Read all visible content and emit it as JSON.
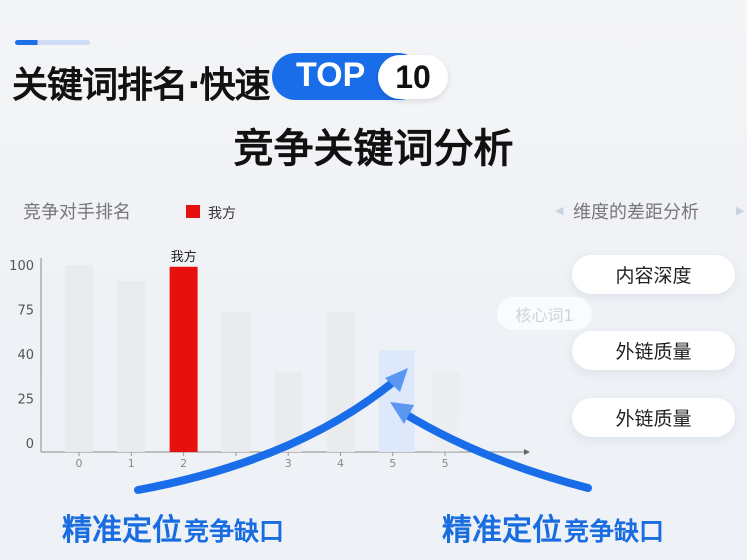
{
  "header": {
    "title": "关键词排名·快速",
    "badge_top": "TOP",
    "badge_number": "10",
    "subtitle": "竞争关键词分析",
    "accent_color": "#1a6de8"
  },
  "left_section": {
    "title": "竞争对手排名"
  },
  "right_section": {
    "title": "维度的差距分析",
    "items": [
      "内容深度",
      "外链质量",
      "外链质量"
    ],
    "faint_item": "核心词1"
  },
  "bottom": [
    {
      "main": "精准定位",
      "sub": "竞争缺口"
    },
    {
      "main": "精准定位",
      "sub": "竞争缺口"
    }
  ],
  "chart_data": {
    "type": "bar",
    "categories": [
      "0",
      "1",
      "2",
      "",
      "3",
      "4",
      "5",
      "5"
    ],
    "values": [
      100,
      91,
      99,
      73,
      34,
      73,
      43,
      34
    ],
    "highlight_index": 2,
    "highlight_label": "我方",
    "gap_index": 6,
    "legend": [
      {
        "name": "我方",
        "color": "#e80f0f"
      }
    ],
    "legend_placement": "top",
    "yticks": [
      0,
      25,
      40,
      75,
      100
    ],
    "ylim": [
      0,
      100
    ],
    "grid": false,
    "colors": {
      "bar": "#e9eaec",
      "highlight": "#e80f0f",
      "gap": "#dde8fb",
      "arrow": "#1a6de8"
    }
  }
}
